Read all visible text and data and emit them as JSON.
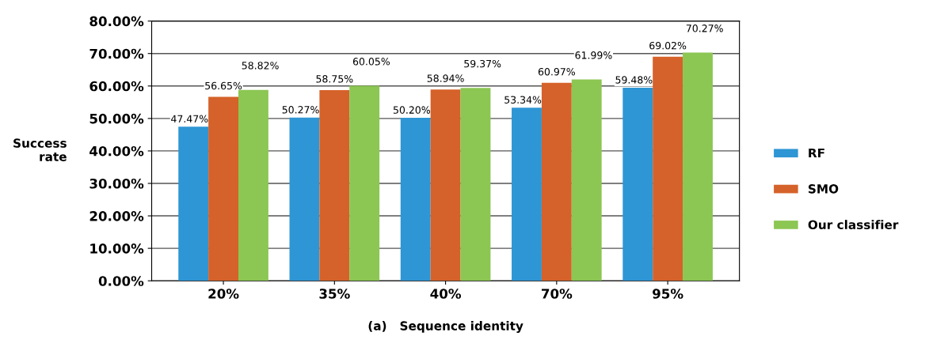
{
  "chart_data": {
    "type": "bar",
    "xlabel": "(a)   Sequence identity",
    "ylabel": "Success\nrate",
    "categories": [
      "20%",
      "35%",
      "40%",
      "70%",
      "95%"
    ],
    "series": [
      {
        "name": "RF",
        "color": "#2e96d4",
        "values": [
          47.47,
          50.27,
          50.2,
          53.34,
          59.48
        ],
        "value_labels": [
          "47.47%",
          "50.27%",
          "50.20%",
          "53.34%",
          "59.48%"
        ]
      },
      {
        "name": "SMO",
        "color": "#d5622a",
        "values": [
          56.65,
          58.75,
          58.94,
          60.97,
          69.02
        ],
        "value_labels": [
          "56.65%",
          "58.75%",
          "58.94%",
          "60.97%",
          "69.02%"
        ]
      },
      {
        "name": "Our classifier",
        "color": "#8cc653",
        "values": [
          58.82,
          60.05,
          59.37,
          61.99,
          70.27
        ],
        "value_labels": [
          "58.82%",
          "60.05%",
          "59.37%",
          "61.99%",
          "70.27%"
        ]
      }
    ],
    "ylim": [
      0,
      80
    ],
    "yticks": [
      {
        "value": 0,
        "label": "0.00%"
      },
      {
        "value": 10,
        "label": "10.00%"
      },
      {
        "value": 20,
        "label": "20.00%"
      },
      {
        "value": 30,
        "label": "30.00%"
      },
      {
        "value": 40,
        "label": "40.00%"
      },
      {
        "value": 50,
        "label": "50.00%"
      },
      {
        "value": 60,
        "label": "60.00%"
      },
      {
        "value": 70,
        "label": "70.00%"
      },
      {
        "value": 80,
        "label": "80.00%"
      }
    ],
    "grid": "y",
    "legend": "right"
  }
}
